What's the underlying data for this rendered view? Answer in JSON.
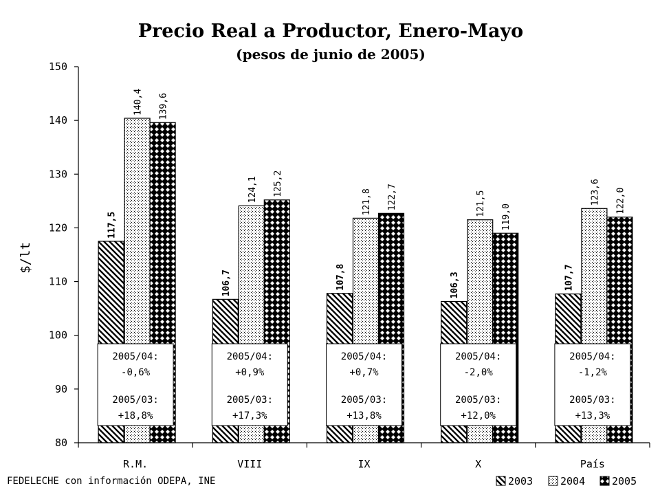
{
  "chart_data": {
    "type": "bar",
    "title": "Precio Real a Productor, Enero-Mayo",
    "subtitle": "(pesos de junio de 2005)",
    "ylabel": "$/lt",
    "xlabel": "",
    "ylim": [
      80,
      150
    ],
    "yticks": [
      80,
      90,
      100,
      110,
      120,
      130,
      140,
      150
    ],
    "categories": [
      "R.M.",
      "VIII",
      "IX",
      "X",
      "País"
    ],
    "series": [
      {
        "name": "2003",
        "values": [
          117.5,
          106.7,
          107.8,
          106.3,
          107.7
        ],
        "labels": [
          "117,5",
          "106,7",
          "107,8",
          "106,3",
          "107,7"
        ]
      },
      {
        "name": "2004",
        "values": [
          140.4,
          124.1,
          121.8,
          121.5,
          123.6
        ],
        "labels": [
          "140,4",
          "124,1",
          "121,8",
          "121,5",
          "123,6"
        ]
      },
      {
        "name": "2005",
        "values": [
          139.6,
          125.2,
          122.7,
          119.0,
          122.0
        ],
        "labels": [
          "139,6",
          "125,2",
          "122,7",
          "119,0",
          "122,0"
        ]
      }
    ],
    "annotations": [
      {
        "line1": "2005/04:",
        "line2": "-0,6%",
        "line3": "2005/03:",
        "line4": "+18,8%"
      },
      {
        "line1": "2005/04:",
        "line2": "+0,9%",
        "line3": "2005/03:",
        "line4": "+17,3%"
      },
      {
        "line1": "2005/04:",
        "line2": "+0,7%",
        "line3": "2005/03:",
        "line4": "+13,8%"
      },
      {
        "line1": "2005/04:",
        "line2": "-2,0%",
        "line3": "2005/03:",
        "line4": "+12,0%"
      },
      {
        "line1": "2005/04:",
        "line2": "-1,2%",
        "line3": "2005/03:",
        "line4": "+13,3%"
      }
    ],
    "source": "FEDELECHE con información ODEPA, INE",
    "legend": {
      "position": "bottom-right",
      "items": [
        "2003",
        "2004",
        "2005"
      ]
    },
    "grid": false
  }
}
